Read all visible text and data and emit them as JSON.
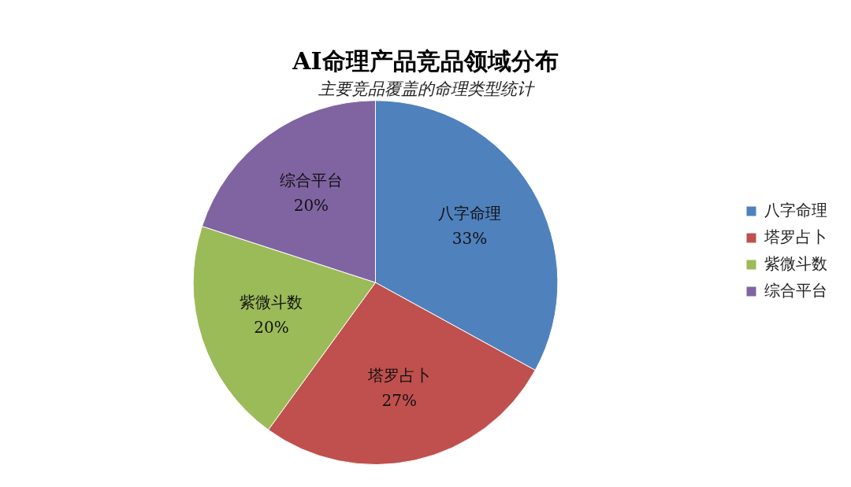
{
  "chart_data": {
    "type": "pie",
    "title": "AI命理产品竞品领域分布",
    "subtitle": "主要竞品覆盖的命理类型统计",
    "categories": [
      "八字命理",
      "塔罗占卜",
      "紫微斗数",
      "综合平台"
    ],
    "values": [
      33,
      27,
      20,
      20
    ],
    "colors": [
      "#4f81bd",
      "#c0504d",
      "#9bbb59",
      "#8064a2"
    ],
    "value_labels": [
      "33%",
      "27%",
      "20%",
      "20%"
    ],
    "legend": "right"
  }
}
